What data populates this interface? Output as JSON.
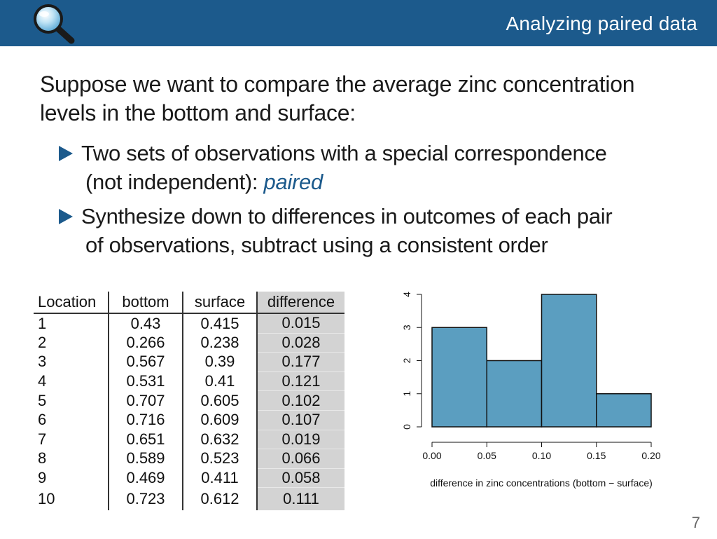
{
  "header": {
    "title": "Analyzing paired data"
  },
  "intro": {
    "text": "Suppose we want to compare the average zinc concentration levels in the bottom and surface:"
  },
  "bullets": [
    {
      "line1": "Two sets of observations with a special correspondence",
      "line2": "(not independent): ",
      "emphasis": "paired"
    },
    {
      "line1": "Synthesize down to differences in outcomes of each pair",
      "line2": "of observations, subtract using a consistent order"
    }
  ],
  "table": {
    "headers": [
      "Location",
      "bottom",
      "surface",
      "difference"
    ],
    "rows": [
      [
        "1",
        "0.43",
        "0.415",
        "0.015"
      ],
      [
        "2",
        "0.266",
        "0.238",
        "0.028"
      ],
      [
        "3",
        "0.567",
        "0.39",
        "0.177"
      ],
      [
        "4",
        "0.531",
        "0.41",
        "0.121"
      ],
      [
        "5",
        "0.707",
        "0.605",
        "0.102"
      ],
      [
        "6",
        "0.716",
        "0.609",
        "0.107"
      ],
      [
        "7",
        "0.651",
        "0.632",
        "0.019"
      ],
      [
        "8",
        "0.589",
        "0.523",
        "0.066"
      ],
      [
        "9",
        "0.469",
        "0.411",
        "0.058"
      ],
      [
        "10",
        "0.723",
        "0.612",
        "0.111"
      ]
    ]
  },
  "chart_data": {
    "type": "bar",
    "bins": [
      [
        0.0,
        0.05
      ],
      [
        0.05,
        0.1
      ],
      [
        0.1,
        0.15
      ],
      [
        0.15,
        0.2
      ]
    ],
    "values": [
      3,
      2,
      4,
      1
    ],
    "xticks": [
      "0.00",
      "0.05",
      "0.10",
      "0.15",
      "0.20"
    ],
    "yticks": [
      "0",
      "1",
      "2",
      "3",
      "4"
    ],
    "xlabel": "difference in zinc concentrations (bottom − surface)",
    "ylabel": "",
    "title": "",
    "xlim": [
      0,
      0.2
    ],
    "ylim": [
      0,
      4
    ],
    "bar_color": "#5b9ec0",
    "grid": false
  },
  "page": {
    "number": "7"
  },
  "colors": {
    "accent": "#1c5a8c"
  },
  "icons": {
    "header": "magnifier-icon",
    "bullet": "triangle-bullet-icon"
  }
}
